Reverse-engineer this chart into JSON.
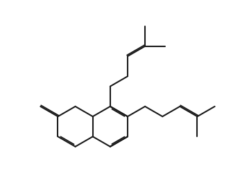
{
  "line_color": "#1a1a1a",
  "background_color": "#ffffff",
  "lw": 1.5,
  "dlw": 1.3,
  "figsize": [
    3.59,
    2.47
  ],
  "dpi": 100,
  "BL": 0.9
}
